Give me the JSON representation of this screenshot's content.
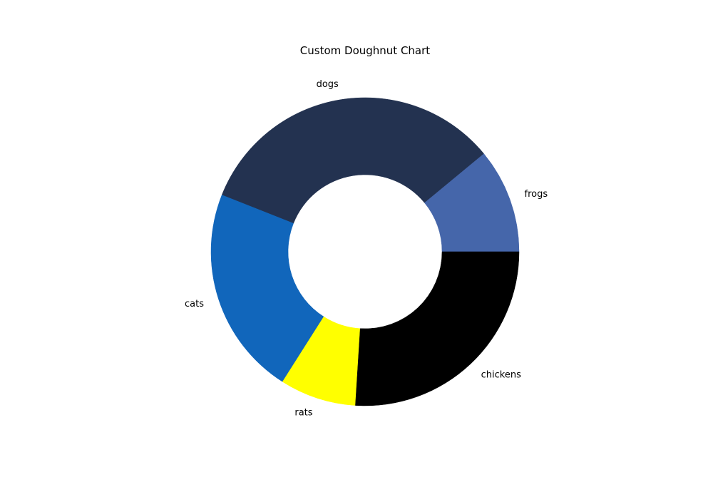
{
  "chart_data": {
    "type": "pie",
    "title": "Custom Doughnut Chart",
    "categories": [
      "frogs",
      "dogs",
      "cats",
      "rats",
      "chickens"
    ],
    "values": [
      11,
      33,
      22,
      8,
      26
    ],
    "colors": [
      "#4566aa",
      "#233250",
      "#1166bb",
      "#ffff00",
      "#000000"
    ],
    "start_angle_deg": 0,
    "direction": "counterclockwise",
    "donut": true,
    "inner_radius_ratio": 0.5
  }
}
